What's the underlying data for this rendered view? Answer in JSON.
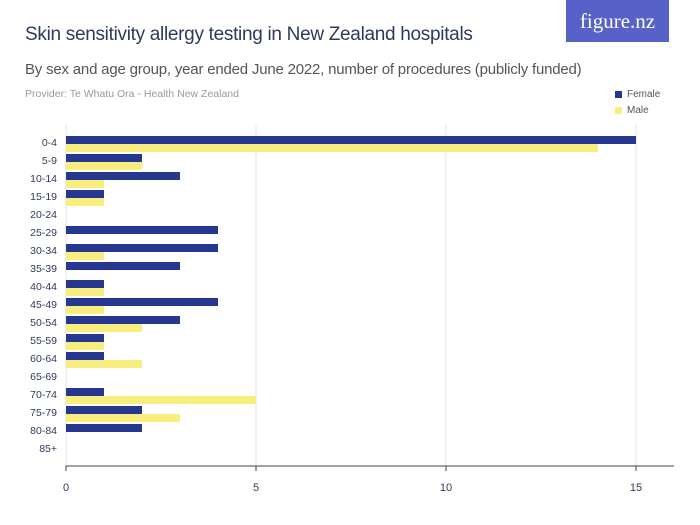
{
  "title": "Skin sensitivity allergy testing in New Zealand hospitals",
  "subtitle": "By sex and age group, year ended June 2022, number of procedures (publicly funded)",
  "provider": "Provider: Te Whatu Ora - Health New Zealand",
  "logo": "figure.nz",
  "chart_data": {
    "type": "bar",
    "orientation": "horizontal",
    "categories": [
      "0-4",
      "5-9",
      "10-14",
      "15-19",
      "20-24",
      "25-29",
      "30-34",
      "35-39",
      "40-44",
      "45-49",
      "50-54",
      "55-59",
      "60-64",
      "65-69",
      "70-74",
      "75-79",
      "80-84",
      "85+"
    ],
    "series": [
      {
        "name": "Female",
        "color": "#26378f",
        "values": [
          15,
          2,
          3,
          1,
          0,
          4,
          4,
          3,
          1,
          4,
          3,
          1,
          1,
          0,
          1,
          2,
          2,
          0
        ]
      },
      {
        "name": "Male",
        "color": "#f7ee7f",
        "values": [
          14,
          2,
          1,
          1,
          0,
          0,
          1,
          0,
          1,
          1,
          2,
          1,
          2,
          0,
          5,
          3,
          0,
          0
        ]
      }
    ],
    "xlim": [
      0,
      16
    ],
    "xticks": [
      0,
      5,
      10,
      15
    ],
    "grid": true,
    "legend": "top-right"
  }
}
